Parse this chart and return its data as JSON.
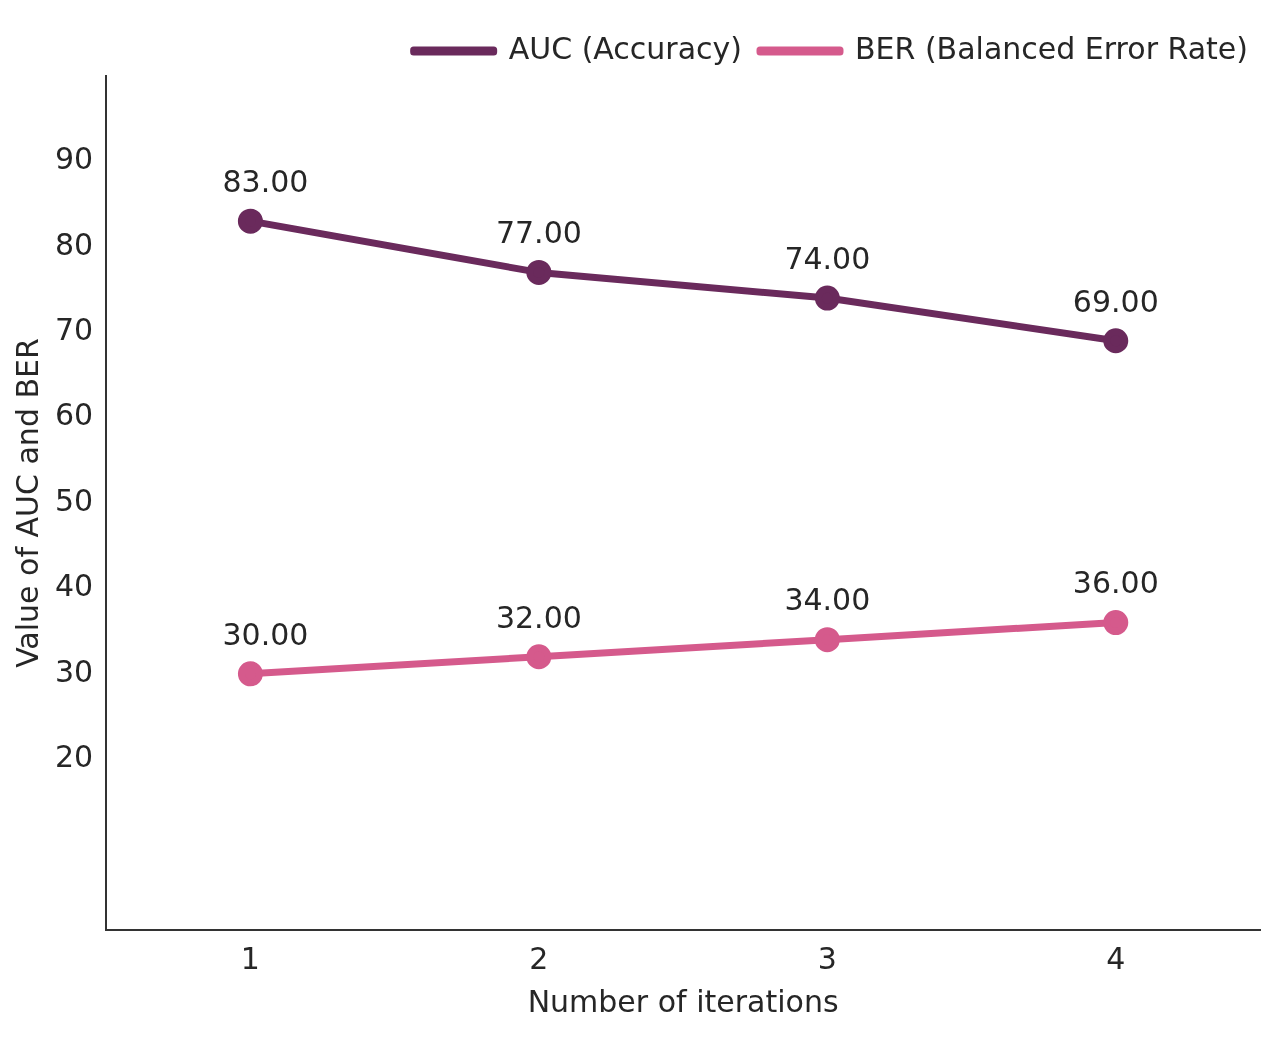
{
  "chart_data": {
    "type": "line",
    "xlabel": "Number of iterations",
    "ylabel": "Value of AUC and BER",
    "categories": [
      "1",
      "2",
      "3",
      "4"
    ],
    "series": [
      {
        "name": "AUC (Accuracy)",
        "color": "#6a2a5c",
        "values": [
          83,
          77,
          74,
          69
        ],
        "value_labels": [
          "83.00",
          "77.00",
          "74.00",
          "69.00"
        ]
      },
      {
        "name": "BER (Balanced Error Rate)",
        "color": "#d55a8c",
        "values": [
          30,
          32,
          34,
          36
        ],
        "value_labels": [
          "30.00",
          "32.00",
          "34.00",
          "36.00"
        ]
      }
    ],
    "ylim": [
      0,
      100
    ],
    "yticks": [
      20,
      30,
      40,
      50,
      60,
      70,
      80,
      90
    ],
    "grid": false,
    "legend": "top right",
    "marker": "circle",
    "line_style": "solid"
  }
}
